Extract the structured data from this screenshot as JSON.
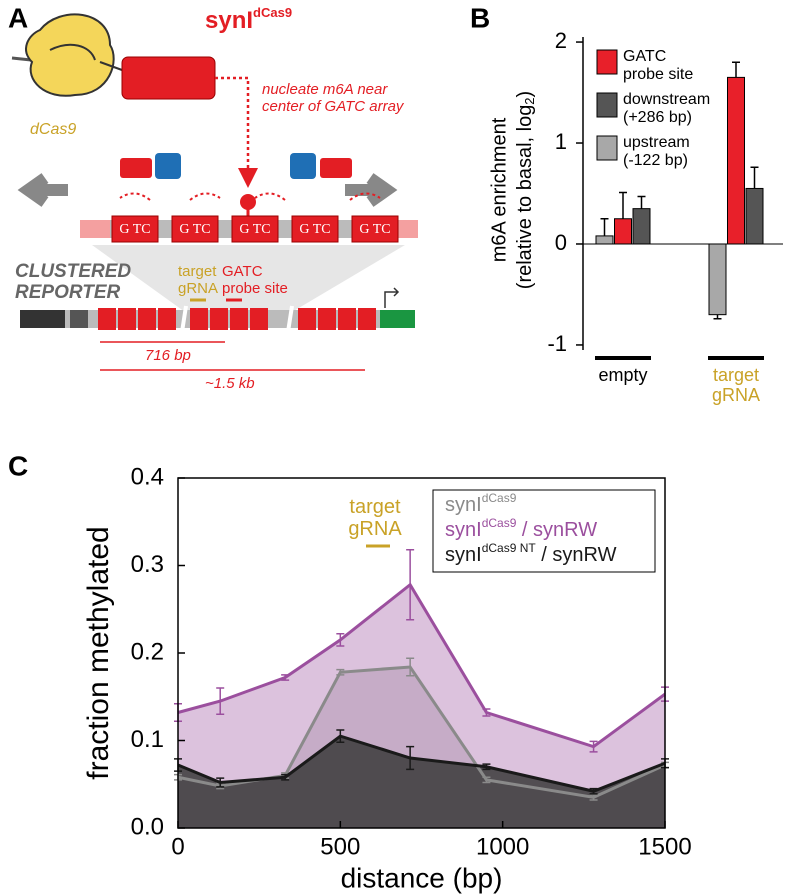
{
  "diagram": {
    "panel_label": "A",
    "construct_name": "synI",
    "construct_sup": "dCas9",
    "dcas9_label": "dCas9",
    "note": "nucleate m6A near center of GATC array",
    "sites": [
      "G TC",
      "G TC",
      "G TC",
      "G TC",
      "G TC"
    ],
    "reporter_label": "CLUSTERED REPORTER",
    "target_label": "target gRNA",
    "probe_label": "GATC probe site",
    "distance_1": "716 bp",
    "distance_2": "~1.5 kb"
  },
  "chart_data": [
    {
      "type": "bar",
      "panel_label": "B",
      "ylabel": "m6A enrichment",
      "ylabel_2": "(relative to basal, log",
      "ylabel_2_sub": "2",
      "ylabel_2_end": ")",
      "categories": [
        "empty",
        "target gRNA"
      ],
      "category_colors": [
        "#000000",
        "#c9a227"
      ],
      "series": [
        {
          "name": "GATC probe site",
          "color": "#e8202a",
          "values": [
            0.25,
            1.65
          ],
          "errors": [
            0.26,
            0.15
          ]
        },
        {
          "name": "downstream (+286 bp)",
          "color": "#555555",
          "values": [
            0.35,
            0.55
          ],
          "errors": [
            0.12,
            0.21
          ]
        },
        {
          "name": "upstream (-122 bp)",
          "color": "#a8a8a8",
          "values": [
            0.08,
            -0.7
          ],
          "errors": [
            0.17,
            0.04
          ]
        }
      ],
      "ylim": [
        -1.05,
        2.05
      ],
      "yticks": [
        -1,
        0,
        1,
        2
      ],
      "legend": "upper left"
    },
    {
      "type": "line",
      "panel_label": "C",
      "xlabel": "distance (bp)",
      "ylabel": "fraction methylated",
      "annotation": "target gRNA",
      "x": [
        0,
        130,
        330,
        500,
        715,
        950,
        1280,
        1500
      ],
      "series": [
        {
          "name": "synI",
          "name_sup": "dCas9",
          "color": "#8a8a8a",
          "fill": "#a0a0a0",
          "values": [
            0.058,
            0.048,
            0.06,
            0.178,
            0.184,
            0.055,
            0.035,
            0.072
          ],
          "errors": [
            0.003,
            0.003,
            0.003,
            0.003,
            0.01,
            0.003,
            0.003,
            0.003
          ]
        },
        {
          "name": "synI",
          "name_sup": "dCas9",
          "name_tail": " / synRW",
          "color": "#9b4f9e",
          "fill": "#9b4f9e",
          "values": [
            0.132,
            0.145,
            0.172,
            0.215,
            0.278,
            0.132,
            0.093,
            0.153
          ],
          "errors": [
            0.01,
            0.015,
            0.003,
            0.007,
            0.04,
            0.004,
            0.006,
            0.008
          ]
        },
        {
          "name": "synI",
          "name_sup": "dCas9 NT",
          "name_tail": " / synRW",
          "color": "#1a1a1a",
          "fill": "#3a3a3a",
          "values": [
            0.072,
            0.052,
            0.058,
            0.105,
            0.08,
            0.07,
            0.042,
            0.074
          ],
          "errors": [
            0.007,
            0.005,
            0.003,
            0.007,
            0.013,
            0.003,
            0.003,
            0.005
          ]
        }
      ],
      "xlim": [
        0,
        1500
      ],
      "xticks": [
        0,
        500,
        1000,
        1500
      ],
      "ylim": [
        0,
        0.4
      ],
      "yticks": [
        {
          "value": 0,
          "label": "0.0"
        },
        0.1,
        0.2,
        0.3,
        0.4
      ],
      "legend": "upper right"
    }
  ]
}
